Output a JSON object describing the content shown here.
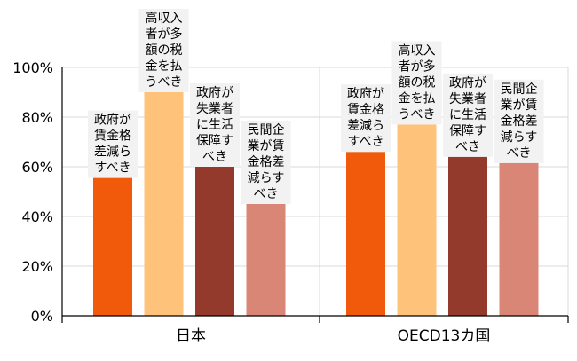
{
  "chart_data": {
    "type": "bar",
    "categories": [
      "日本",
      "OECD13カ国"
    ],
    "y_ticks": [
      "0%",
      "20%",
      "40%",
      "60%",
      "80%",
      "100%"
    ],
    "ylim": [
      0,
      100
    ],
    "unit": "%",
    "grid": true,
    "series": [
      {
        "label_lines": [
          "政府が",
          "賃金格",
          "差減ら",
          "すべき"
        ],
        "color": "#F05A0A",
        "values": [
          55.5,
          66
        ]
      },
      {
        "label_lines": [
          "高収入",
          "者が多",
          "額の税",
          "金を払",
          "うべき"
        ],
        "color": "#FFC27A",
        "values": [
          90,
          77
        ]
      },
      {
        "label_lines": [
          "政府が",
          "失業者",
          "に生活",
          "保障す",
          "べき"
        ],
        "color": "#943A2C",
        "values": [
          60,
          64
        ]
      },
      {
        "label_lines": [
          "民間企",
          "業が賃",
          "金格差",
          "減らす",
          "べき"
        ],
        "color": "#D98676",
        "values": [
          45,
          61.5
        ]
      }
    ]
  }
}
